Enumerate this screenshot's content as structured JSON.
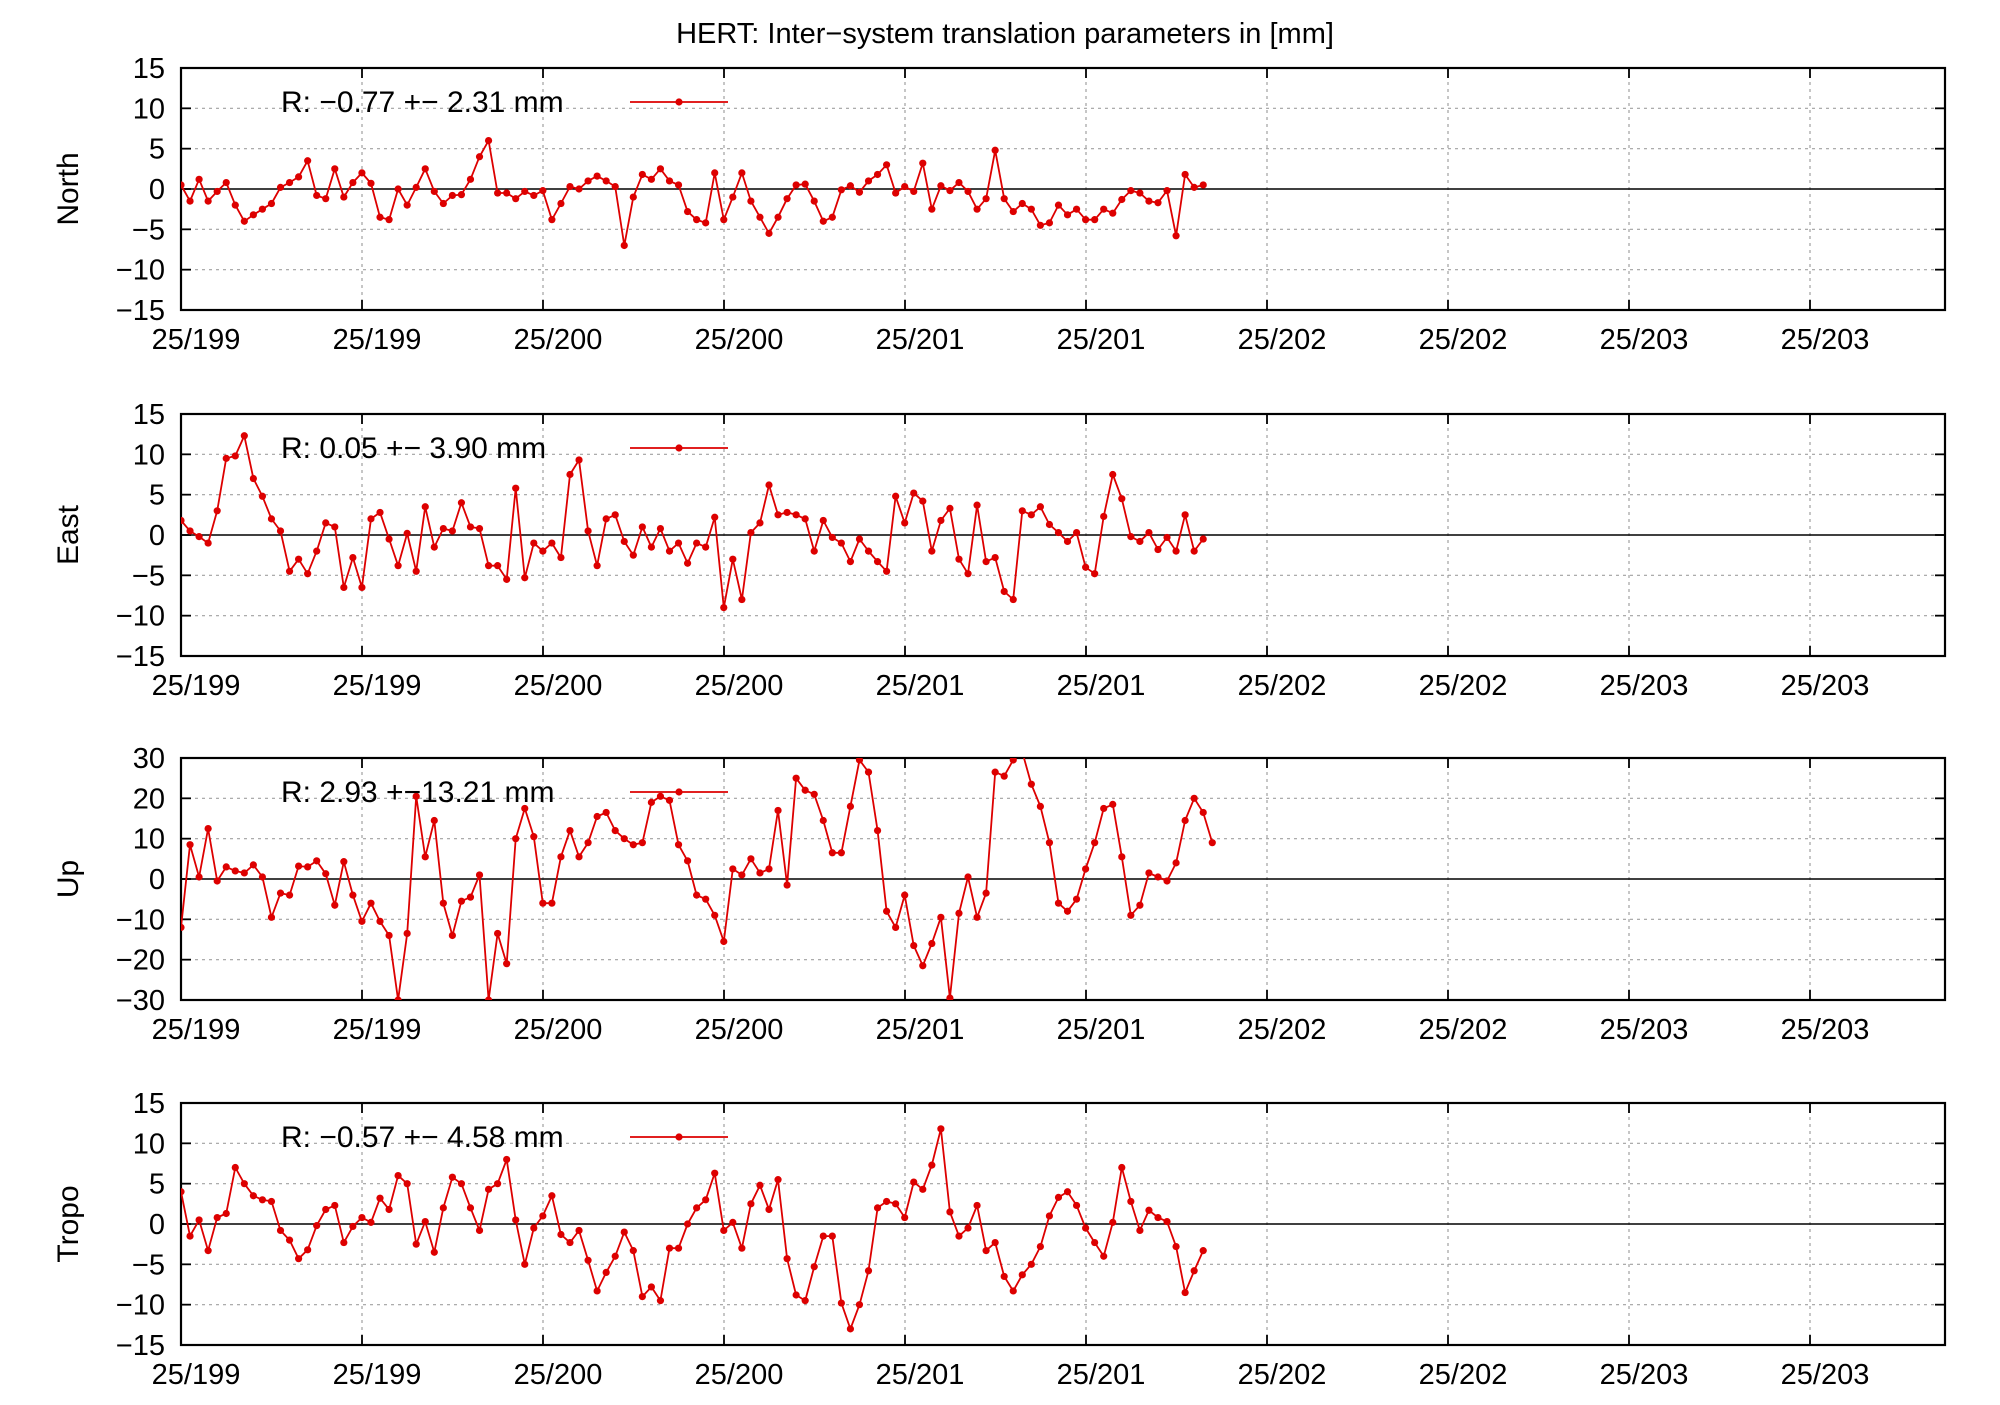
{
  "figure_title": "HERT: Inter−system translation parameters in [mm]",
  "colors": {
    "series": "#dd0000",
    "axis": "#000000",
    "grid": "#a0a0a0",
    "zero_line": "#000000",
    "background": "#ffffff"
  },
  "chart_data": [
    {
      "type": "line",
      "ylabel": "North",
      "ylim": [
        -15,
        15
      ],
      "yticks": [
        "15",
        "10",
        "5",
        "0",
        "−5",
        "−10",
        "−15"
      ],
      "ytick_values": [
        15,
        10,
        5,
        0,
        -5,
        -10,
        -15
      ],
      "xtick_labels": [
        "25/199",
        "25/199",
        "25/200",
        "25/200",
        "25/201",
        "25/201",
        "25/202",
        "25/202",
        "25/203",
        "25/203"
      ],
      "x_range": [
        0,
        195
      ],
      "legend_label": "R:  −0.77 +− 2.31 mm",
      "values": [
        0.5,
        -1.5,
        1.2,
        -1.5,
        -0.3,
        0.8,
        -2.0,
        -4.0,
        -3.2,
        -2.5,
        -1.8,
        0.2,
        0.8,
        1.5,
        3.5,
        -0.8,
        -1.2,
        2.5,
        -1.0,
        0.8,
        2.0,
        0.7,
        -3.5,
        -3.8,
        0.0,
        -2.0,
        0.2,
        2.5,
        -0.3,
        -1.8,
        -0.8,
        -0.7,
        1.2,
        4.0,
        6.0,
        -0.5,
        -0.5,
        -1.2,
        -0.3,
        -0.8,
        -0.2,
        -3.8,
        -1.8,
        0.3,
        0.0,
        1.0,
        1.6,
        1.0,
        0.3,
        -7.0,
        -1.0,
        1.8,
        1.2,
        2.5,
        1.0,
        0.5,
        -2.8,
        -3.8,
        -4.2,
        2.0,
        -3.8,
        -1.0,
        2.0,
        -1.5,
        -3.5,
        -5.5,
        -3.5,
        -1.2,
        0.5,
        0.6,
        -1.5,
        -4.0,
        -3.5,
        -0.1,
        0.4,
        -0.4,
        1.0,
        1.8,
        3.0,
        -0.5,
        0.3,
        -0.3,
        3.2,
        -2.5,
        0.4,
        -0.2,
        0.8,
        -0.3,
        -2.5,
        -1.2,
        4.8,
        -1.2,
        -2.8,
        -1.8,
        -2.5,
        -4.5,
        -4.2,
        -2.0,
        -3.2,
        -2.5,
        -3.8,
        -3.8,
        -2.5,
        -3.0,
        -1.3,
        -0.2,
        -0.5,
        -1.5,
        -1.7,
        -0.2,
        -5.8,
        1.8,
        0.2,
        0.5
      ]
    },
    {
      "type": "line",
      "ylabel": "East",
      "ylim": [
        -15,
        15
      ],
      "yticks": [
        "15",
        "10",
        "5",
        "0",
        "−5",
        "−10",
        "−15"
      ],
      "ytick_values": [
        15,
        10,
        5,
        0,
        -5,
        -10,
        -15
      ],
      "xtick_labels": [
        "25/199",
        "25/199",
        "25/200",
        "25/200",
        "25/201",
        "25/201",
        "25/202",
        "25/202",
        "25/203",
        "25/203"
      ],
      "x_range": [
        0,
        195
      ],
      "legend_label": "R:   0.05 +− 3.90 mm",
      "values": [
        1.8,
        0.5,
        -0.2,
        -1.0,
        3.0,
        9.5,
        9.8,
        12.3,
        7.0,
        4.8,
        2.0,
        0.5,
        -4.5,
        -3.0,
        -4.8,
        -2.0,
        1.5,
        1.0,
        -6.5,
        -2.8,
        -6.5,
        2.0,
        2.8,
        -0.5,
        -3.8,
        0.2,
        -4.5,
        3.5,
        -1.5,
        0.8,
        0.5,
        4.0,
        1.0,
        0.8,
        -3.8,
        -3.8,
        -5.5,
        5.8,
        -5.3,
        -1.0,
        -2.0,
        -1.0,
        -2.8,
        7.5,
        9.3,
        0.5,
        -3.8,
        2.0,
        2.5,
        -0.8,
        -2.5,
        1.0,
        -1.5,
        0.8,
        -2.0,
        -1.0,
        -3.5,
        -1.0,
        -1.5,
        2.2,
        -9.0,
        -3.0,
        -8.0,
        0.3,
        1.5,
        6.2,
        2.5,
        2.8,
        2.5,
        2.0,
        -2.0,
        1.8,
        -0.3,
        -1.0,
        -3.3,
        -0.5,
        -2.0,
        -3.3,
        -4.5,
        4.8,
        1.5,
        5.2,
        4.2,
        -2.0,
        1.8,
        3.3,
        -3.0,
        -4.8,
        3.7,
        -3.3,
        -2.8,
        -7.0,
        -8.0,
        3.0,
        2.5,
        3.5,
        1.3,
        0.3,
        -0.8,
        0.3,
        -4.0,
        -4.8,
        2.3,
        7.5,
        4.5,
        -0.2,
        -0.8,
        0.3,
        -1.8,
        -0.3,
        -2.0,
        2.5,
        -2.0,
        -0.5
      ]
    },
    {
      "type": "line",
      "ylabel": "Up",
      "ylim": [
        -30,
        30
      ],
      "yticks": [
        "30",
        "20",
        "10",
        "0",
        "−10",
        "−20",
        "−30"
      ],
      "ytick_values": [
        30,
        20,
        10,
        0,
        -10,
        -20,
        -30
      ],
      "xtick_labels": [
        "25/199",
        "25/199",
        "25/200",
        "25/200",
        "25/201",
        "25/201",
        "25/202",
        "25/202",
        "25/203",
        "25/203"
      ],
      "x_range": [
        0,
        195
      ],
      "legend_label": "R:   2.93 +−13.21 mm",
      "values": [
        -12.0,
        8.5,
        0.5,
        12.5,
        -0.5,
        3.0,
        2.0,
        1.5,
        3.5,
        0.5,
        -9.5,
        -3.5,
        -4.0,
        3.2,
        3.0,
        4.5,
        1.3,
        -6.5,
        4.3,
        -4.0,
        -10.5,
        -6.0,
        -10.5,
        -14.0,
        -30.0,
        -13.5,
        20.5,
        5.5,
        14.5,
        -6.0,
        -14.0,
        -5.5,
        -4.5,
        1.0,
        -30.0,
        -13.5,
        -21.0,
        10.0,
        17.5,
        10.5,
        -6.0,
        -6.0,
        5.5,
        12.0,
        5.5,
        9.0,
        15.5,
        16.5,
        12.0,
        10.0,
        8.5,
        9.0,
        19.0,
        20.5,
        19.5,
        8.5,
        4.5,
        -4.0,
        -5.0,
        -9.0,
        -15.5,
        2.5,
        1.0,
        5.0,
        1.5,
        2.5,
        17.0,
        -1.5,
        25.0,
        22.0,
        21.0,
        14.5,
        6.5,
        6.5,
        18.0,
        29.5,
        26.5,
        12.0,
        -8.0,
        -12.0,
        -4.0,
        -16.5,
        -21.5,
        -16.0,
        -9.5,
        -29.5,
        -8.5,
        0.5,
        -9.5,
        -3.5,
        26.5,
        25.5,
        29.5,
        31.5,
        23.5,
        18.0,
        9.0,
        -6.0,
        -8.0,
        -5.0,
        2.5,
        9.0,
        17.5,
        18.5,
        5.5,
        -9.0,
        -6.5,
        1.5,
        0.5,
        -0.5,
        4.0,
        14.5,
        20.0,
        16.5,
        9.0
      ]
    },
    {
      "type": "line",
      "ylabel": "Tropo",
      "ylim": [
        -15,
        15
      ],
      "yticks": [
        "15",
        "10",
        "5",
        "0",
        "−5",
        "−10",
        "−15"
      ],
      "ytick_values": [
        15,
        10,
        5,
        0,
        -5,
        -10,
        -15
      ],
      "xtick_labels": [
        "25/199",
        "25/199",
        "25/200",
        "25/200",
        "25/201",
        "25/201",
        "25/202",
        "25/202",
        "25/203",
        "25/203"
      ],
      "x_range": [
        0,
        195
      ],
      "legend_label": "R:  −0.57 +− 4.58 mm",
      "values": [
        4.0,
        -1.5,
        0.5,
        -3.3,
        0.8,
        1.3,
        7.0,
        5.0,
        3.5,
        3.0,
        2.8,
        -0.8,
        -2.0,
        -4.3,
        -3.2,
        -0.2,
        1.8,
        2.3,
        -2.3,
        -0.3,
        0.8,
        0.2,
        3.2,
        1.8,
        6.0,
        5.0,
        -2.5,
        0.3,
        -3.5,
        2.0,
        5.8,
        5.0,
        2.0,
        -0.8,
        4.3,
        5.0,
        8.0,
        0.5,
        -5.0,
        -0.5,
        1.0,
        3.5,
        -1.3,
        -2.3,
        -0.8,
        -4.5,
        -8.3,
        -6.0,
        -4.0,
        -1.0,
        -3.3,
        -9.0,
        -7.8,
        -9.5,
        -3.0,
        -3.0,
        0.0,
        2.0,
        3.0,
        6.3,
        -0.8,
        0.2,
        -3.0,
        2.5,
        4.8,
        1.8,
        5.5,
        -4.3,
        -8.8,
        -9.5,
        -5.3,
        -1.5,
        -1.5,
        -9.8,
        -13.0,
        -10.0,
        -5.8,
        2.0,
        2.8,
        2.5,
        0.8,
        5.2,
        4.3,
        7.3,
        11.8,
        1.5,
        -1.5,
        -0.5,
        2.3,
        -3.3,
        -2.3,
        -6.5,
        -8.3,
        -6.3,
        -5.0,
        -2.8,
        1.0,
        3.3,
        4.0,
        2.3,
        -0.5,
        -2.3,
        -4.0,
        0.2,
        7.0,
        2.8,
        -0.8,
        1.7,
        0.8,
        0.3,
        -2.8,
        -8.5,
        -5.8,
        -3.3
      ]
    }
  ]
}
